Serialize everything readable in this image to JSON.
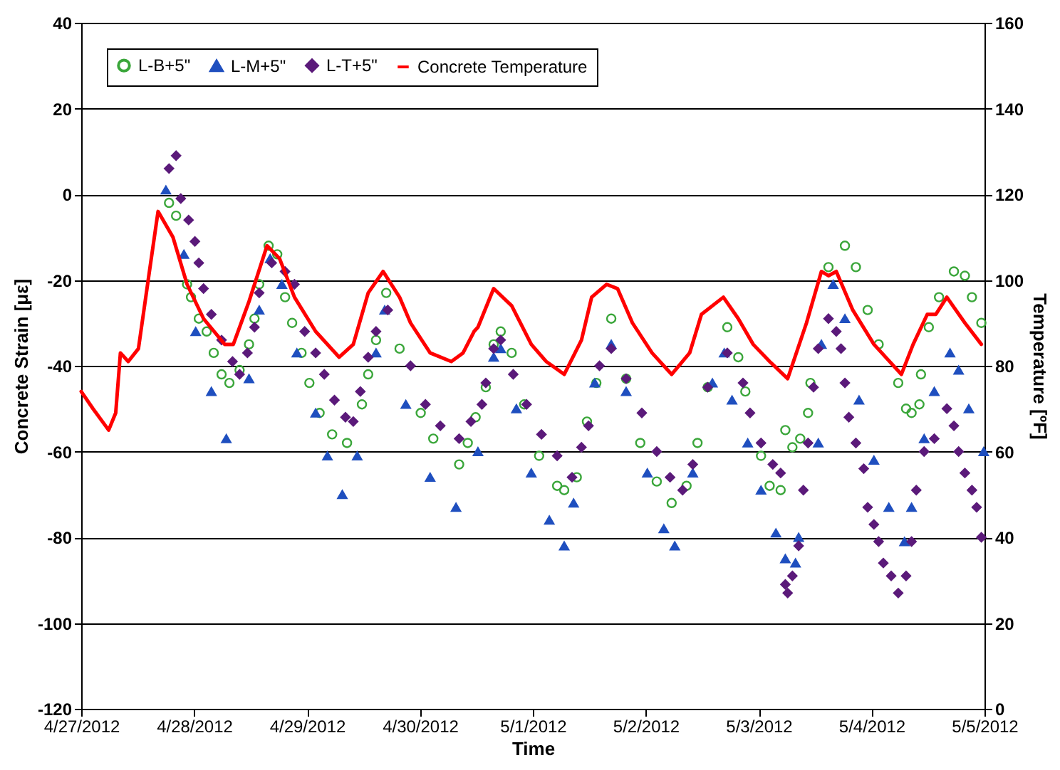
{
  "chart_data": {
    "type": "scatter",
    "xlabel": "Time",
    "ylabel": "Concrete Strain [με]",
    "y2label": "Temperature [ºF]",
    "xlim": [
      "2012-04-27T00:00",
      "2012-05-05T00:00"
    ],
    "xticks": [
      {
        "value": "2012-04-27T00:00",
        "label": "4/27/2012"
      },
      {
        "value": "2012-04-28T00:00",
        "label": "4/28/2012"
      },
      {
        "value": "2012-04-29T00:00",
        "label": "4/29/2012"
      },
      {
        "value": "2012-04-30T00:00",
        "label": "4/30/2012"
      },
      {
        "value": "2012-05-01T00:00",
        "label": "5/1/2012"
      },
      {
        "value": "2012-05-02T00:00",
        "label": "5/2/2012"
      },
      {
        "value": "2012-05-03T00:00",
        "label": "5/3/2012"
      },
      {
        "value": "2012-05-04T00:00",
        "label": "5/4/2012"
      },
      {
        "value": "2012-05-05T00:00",
        "label": "5/5/2012"
      }
    ],
    "ylim": [
      -120,
      40
    ],
    "yticks": [
      -120,
      -100,
      -80,
      -60,
      -40,
      -20,
      0,
      20,
      40
    ],
    "y2lim": [
      0,
      160
    ],
    "y2ticks": [
      0,
      20,
      40,
      60,
      80,
      100,
      120,
      140,
      160
    ],
    "grid": "y",
    "legend": "top left",
    "series": [
      {
        "name": "L-B+5\"",
        "type": "scatter",
        "marker": "circle",
        "color": "#3aa63a",
        "x": [
          "2012-04-27T18:40",
          "2012-04-27T20:10",
          "2012-04-27T22:30",
          "2012-04-27T23:20",
          "2012-04-28T01:00",
          "2012-04-28T02:40",
          "2012-04-28T04:10",
          "2012-04-28T05:50",
          "2012-04-28T07:30",
          "2012-04-28T09:40",
          "2012-04-28T11:40",
          "2012-04-28T12:50",
          "2012-04-28T13:50",
          "2012-04-28T15:50",
          "2012-04-28T17:40",
          "2012-04-28T19:20",
          "2012-04-28T20:50",
          "2012-04-28T22:50",
          "2012-04-29T00:30",
          "2012-04-29T02:40",
          "2012-04-29T05:20",
          "2012-04-29T08:30",
          "2012-04-29T11:40",
          "2012-04-29T13:00",
          "2012-04-29T14:40",
          "2012-04-29T16:50",
          "2012-04-29T19:40",
          "2012-04-30T00:10",
          "2012-04-30T02:50",
          "2012-04-30T08:20",
          "2012-04-30T10:10",
          "2012-04-30T11:50",
          "2012-04-30T14:00",
          "2012-04-30T15:40",
          "2012-04-30T17:10",
          "2012-04-30T19:30",
          "2012-04-30T22:10",
          "2012-05-01T01:20",
          "2012-05-01T05:10",
          "2012-05-01T06:40",
          "2012-05-01T09:20",
          "2012-05-01T11:30",
          "2012-05-01T13:30",
          "2012-05-01T16:40",
          "2012-05-01T19:50",
          "2012-05-01T22:50",
          "2012-05-02T02:20",
          "2012-05-02T05:30",
          "2012-05-02T08:40",
          "2012-05-02T11:00",
          "2012-05-02T13:10",
          "2012-05-02T17:20",
          "2012-05-02T19:40",
          "2012-05-02T21:10",
          "2012-05-03T00:30",
          "2012-05-03T02:20",
          "2012-05-03T04:40",
          "2012-05-03T05:40",
          "2012-05-03T07:10",
          "2012-05-03T08:50",
          "2012-05-03T10:30",
          "2012-05-03T11:00",
          "2012-05-03T14:50",
          "2012-05-03T18:20",
          "2012-05-03T20:40",
          "2012-05-03T23:10",
          "2012-05-04T01:30",
          "2012-05-04T05:40",
          "2012-05-04T07:20",
          "2012-05-04T08:30",
          "2012-05-04T10:10",
          "2012-05-04T10:30",
          "2012-05-04T12:10",
          "2012-05-04T14:20",
          "2012-05-04T17:30",
          "2012-05-04T19:50",
          "2012-05-04T21:20",
          "2012-05-04T23:20"
        ],
        "values": [
          -2,
          -5,
          -21,
          -24,
          -29,
          -32,
          -37,
          -42,
          -44,
          -41,
          -35,
          -29,
          -21,
          -12,
          -14,
          -24,
          -30,
          -37,
          -44,
          -51,
          -56,
          -58,
          -49,
          -42,
          -34,
          -23,
          -36,
          -51,
          -57,
          -63,
          -58,
          -52,
          -45,
          -35,
          -32,
          -37,
          -49,
          -61,
          -68,
          -69,
          -66,
          -53,
          -44,
          -29,
          -43,
          -58,
          -67,
          -72,
          -68,
          -58,
          -45,
          -31,
          -38,
          -46,
          -61,
          -68,
          -69,
          -55,
          -59,
          -57,
          -51,
          -44,
          -17,
          -12,
          -17,
          -27,
          -35,
          -44,
          -50,
          -51,
          -49,
          -42,
          -31,
          -24,
          -18,
          -19,
          -24,
          -30
        ]
      },
      {
        "name": "L-M+5\"",
        "type": "scatter",
        "marker": "triangle",
        "color": "#1f4fbf",
        "x": [
          "2012-04-27T18:00",
          "2012-04-27T21:50",
          "2012-04-28T00:20",
          "2012-04-28T03:40",
          "2012-04-28T06:50",
          "2012-04-28T11:40",
          "2012-04-28T13:50",
          "2012-04-28T16:10",
          "2012-04-28T18:40",
          "2012-04-28T21:50",
          "2012-04-29T01:50",
          "2012-04-29T04:20",
          "2012-04-29T07:30",
          "2012-04-29T10:40",
          "2012-04-29T14:40",
          "2012-04-29T16:30",
          "2012-04-29T21:00",
          "2012-04-30T02:10",
          "2012-04-30T07:40",
          "2012-04-30T12:20",
          "2012-04-30T15:40",
          "2012-04-30T17:10",
          "2012-04-30T20:30",
          "2012-04-30T23:40",
          "2012-05-01T03:30",
          "2012-05-01T06:40",
          "2012-05-01T08:40",
          "2012-05-01T13:10",
          "2012-05-01T16:40",
          "2012-05-01T19:50",
          "2012-05-02T00:20",
          "2012-05-02T03:50",
          "2012-05-02T06:10",
          "2012-05-02T10:00",
          "2012-05-02T14:10",
          "2012-05-02T16:40",
          "2012-05-02T18:20",
          "2012-05-02T21:40",
          "2012-05-03T00:30",
          "2012-05-03T03:40",
          "2012-05-03T05:40",
          "2012-05-03T07:50",
          "2012-05-03T08:30",
          "2012-05-03T12:40",
          "2012-05-03T13:20",
          "2012-05-03T15:50",
          "2012-05-03T18:20",
          "2012-05-03T21:20",
          "2012-05-04T00:30",
          "2012-05-04T03:40",
          "2012-05-04T07:00",
          "2012-05-04T08:30",
          "2012-05-04T11:10",
          "2012-05-04T13:20",
          "2012-05-04T16:40",
          "2012-05-04T18:30",
          "2012-05-04T20:40",
          "2012-05-04T23:50"
        ],
        "values": [
          1,
          -14,
          -32,
          -46,
          -57,
          -43,
          -27,
          -15,
          -21,
          -37,
          -51,
          -61,
          -70,
          -61,
          -37,
          -27,
          -49,
          -66,
          -73,
          -60,
          -38,
          -36,
          -50,
          -65,
          -76,
          -82,
          -72,
          -44,
          -35,
          -46,
          -65,
          -78,
          -82,
          -65,
          -44,
          -37,
          -48,
          -58,
          -69,
          -79,
          -85,
          -86,
          -80,
          -58,
          -35,
          -21,
          -29,
          -48,
          -62,
          -73,
          -81,
          -73,
          -57,
          -46,
          -37,
          -41,
          -50,
          -60
        ]
      },
      {
        "name": "L-T+5\"",
        "type": "scatter",
        "marker": "diamond",
        "color": "#5b1a7a",
        "x": [
          "2012-04-27T18:40",
          "2012-04-27T20:10",
          "2012-04-27T21:10",
          "2012-04-27T22:50",
          "2012-04-28T00:10",
          "2012-04-28T01:00",
          "2012-04-28T02:00",
          "2012-04-28T03:40",
          "2012-04-28T05:50",
          "2012-04-28T08:10",
          "2012-04-28T09:40",
          "2012-04-28T11:20",
          "2012-04-28T12:50",
          "2012-04-28T13:50",
          "2012-04-28T16:30",
          "2012-04-28T19:20",
          "2012-04-28T21:20",
          "2012-04-28T23:30",
          "2012-04-29T01:50",
          "2012-04-29T03:40",
          "2012-04-29T05:50",
          "2012-04-29T08:10",
          "2012-04-29T09:50",
          "2012-04-29T11:20",
          "2012-04-29T13:00",
          "2012-04-29T14:40",
          "2012-04-29T17:10",
          "2012-04-29T22:00",
          "2012-04-30T01:10",
          "2012-04-30T04:20",
          "2012-04-30T08:20",
          "2012-04-30T10:50",
          "2012-04-30T13:10",
          "2012-04-30T14:00",
          "2012-04-30T15:40",
          "2012-04-30T17:10",
          "2012-04-30T19:50",
          "2012-04-30T22:40",
          "2012-05-01T01:50",
          "2012-05-01T05:10",
          "2012-05-01T08:20",
          "2012-05-01T10:20",
          "2012-05-01T11:50",
          "2012-05-01T14:10",
          "2012-05-01T16:40",
          "2012-05-01T19:50",
          "2012-05-01T23:10",
          "2012-05-02T02:20",
          "2012-05-02T05:10",
          "2012-05-02T07:50",
          "2012-05-02T10:00",
          "2012-05-02T13:10",
          "2012-05-02T17:20",
          "2012-05-02T20:40",
          "2012-05-02T22:10",
          "2012-05-03T00:30",
          "2012-05-03T03:00",
          "2012-05-03T04:40",
          "2012-05-03T05:40",
          "2012-05-03T06:10",
          "2012-05-03T07:10",
          "2012-05-03T08:30",
          "2012-05-03T09:30",
          "2012-05-03T10:30",
          "2012-05-03T11:40",
          "2012-05-03T12:40",
          "2012-05-03T14:50",
          "2012-05-03T16:30",
          "2012-05-03T17:30",
          "2012-05-03T18:20",
          "2012-05-03T19:10",
          "2012-05-03T20:40",
          "2012-05-03T22:20",
          "2012-05-03T23:10",
          "2012-05-04T00:30",
          "2012-05-04T01:30",
          "2012-05-04T02:30",
          "2012-05-04T04:10",
          "2012-05-04T05:40",
          "2012-05-04T07:20",
          "2012-05-04T08:30",
          "2012-05-04T09:30",
          "2012-05-04T11:10",
          "2012-05-04T13:20",
          "2012-05-04T16:00",
          "2012-05-04T17:30",
          "2012-05-04T18:30",
          "2012-05-04T19:50",
          "2012-05-04T21:20",
          "2012-05-04T22:20",
          "2012-05-04T23:20"
        ],
        "values": [
          6,
          9,
          -1,
          -6,
          -11,
          -16,
          -22,
          -28,
          -34,
          -39,
          -42,
          -37,
          -31,
          -23,
          -16,
          -18,
          -21,
          -32,
          -37,
          -42,
          -48,
          -52,
          -53,
          -46,
          -38,
          -32,
          -27,
          -40,
          -49,
          -54,
          -57,
          -53,
          -49,
          -44,
          -36,
          -34,
          -42,
          -49,
          -56,
          -61,
          -66,
          -59,
          -54,
          -40,
          -36,
          -43,
          -51,
          -60,
          -66,
          -69,
          -63,
          -45,
          -37,
          -44,
          -51,
          -58,
          -63,
          -65,
          -91,
          -93,
          -89,
          -82,
          -69,
          -58,
          -45,
          -36,
          -29,
          -32,
          -36,
          -44,
          -52,
          -58,
          -64,
          -73,
          -77,
          -81,
          -86,
          -89,
          -93,
          -89,
          -81,
          -69,
          -60,
          -57,
          -50,
          -54,
          -60,
          -65,
          -69,
          -73,
          -80
        ]
      },
      {
        "name": "Concrete Temperature",
        "type": "line",
        "axis": "y2",
        "marker": "none",
        "line_style": "solid",
        "color": "#ff0000",
        "x": [
          "2012-04-27T00:00",
          "2012-04-27T02:30",
          "2012-04-27T05:50",
          "2012-04-27T07:20",
          "2012-04-27T08:20",
          "2012-04-27T10:00",
          "2012-04-27T12:10",
          "2012-04-27T14:30",
          "2012-04-27T16:20",
          "2012-04-27T19:30",
          "2012-04-27T22:30",
          "2012-04-28T02:00",
          "2012-04-28T06:30",
          "2012-04-28T08:20",
          "2012-04-28T11:40",
          "2012-04-28T15:30",
          "2012-04-28T18:10",
          "2012-04-28T21:20",
          "2012-04-29T01:50",
          "2012-04-29T06:50",
          "2012-04-29T09:50",
          "2012-04-29T13:00",
          "2012-04-29T16:10",
          "2012-04-29T19:40",
          "2012-04-29T22:00",
          "2012-04-30T02:10",
          "2012-04-30T06:40",
          "2012-04-30T09:10",
          "2012-04-30T11:30",
          "2012-04-30T12:20",
          "2012-04-30T15:40",
          "2012-04-30T19:30",
          "2012-04-30T23:40",
          "2012-05-01T02:50",
          "2012-05-01T06:40",
          "2012-05-01T10:20",
          "2012-05-01T12:30",
          "2012-05-01T15:40",
          "2012-05-01T18:00",
          "2012-05-01T21:10",
          "2012-05-02T01:20",
          "2012-05-02T05:30",
          "2012-05-02T09:20",
          "2012-05-02T11:50",
          "2012-05-02T16:30",
          "2012-05-02T19:40",
          "2012-05-02T22:50",
          "2012-05-03T02:20",
          "2012-05-03T06:10",
          "2012-05-03T10:10",
          "2012-05-03T13:20",
          "2012-05-03T14:50",
          "2012-05-03T16:30",
          "2012-05-03T20:00",
          "2012-05-04T00:30",
          "2012-05-04T06:20",
          "2012-05-04T08:50",
          "2012-05-04T11:50",
          "2012-05-04T13:40",
          "2012-05-04T16:00",
          "2012-05-04T19:50",
          "2012-05-04T23:20"
        ],
        "values": [
          74,
          70,
          65,
          69,
          83,
          81,
          84,
          102,
          116,
          110,
          99,
          91,
          85,
          85,
          95,
          108,
          105,
          96,
          88,
          82,
          85,
          97,
          102,
          96,
          90,
          83,
          81,
          83,
          88,
          89,
          98,
          94,
          85,
          81,
          78,
          86,
          96,
          99,
          98,
          90,
          83,
          78,
          83,
          92,
          96,
          91,
          85,
          81,
          77,
          90,
          102,
          101,
          102,
          93,
          85,
          78,
          85,
          92,
          92,
          96,
          90,
          85
        ]
      }
    ]
  }
}
